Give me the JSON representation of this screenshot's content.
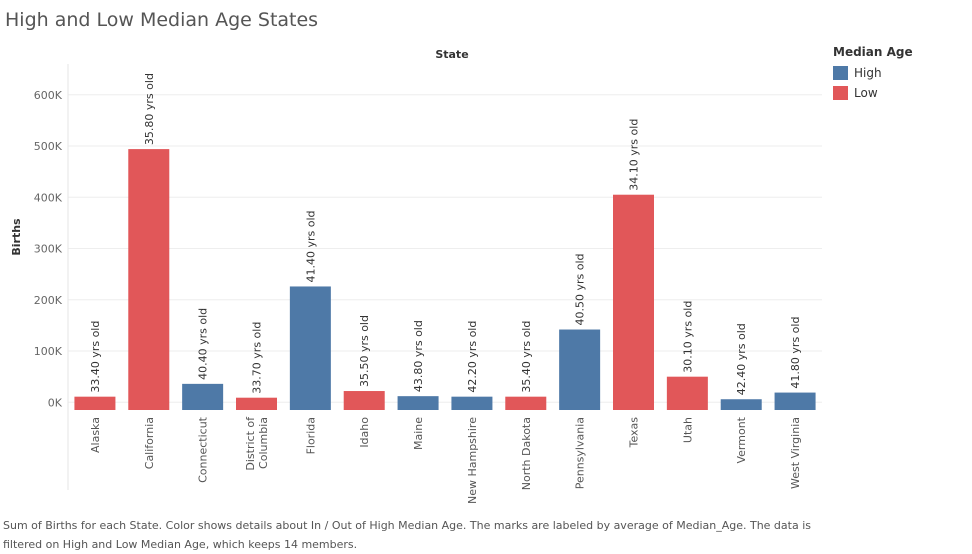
{
  "title": "High and Low Median Age States",
  "caption": "Sum of Births for each State.  Color shows details about In / Out of High Median Age.  The marks are labeled by average of Median_Age. The data is filtered on High and Low Median Age, which keeps 14 members.",
  "legend": {
    "title": "Median Age",
    "items": [
      {
        "label": "High",
        "color": "#4e79a7"
      },
      {
        "label": "Low",
        "color": "#e15759"
      }
    ]
  },
  "chart_data": {
    "type": "bar",
    "xlabel": "State",
    "ylabel": "Births",
    "ylim": [
      -15000,
      660000
    ],
    "yticks": [
      0,
      100000,
      200000,
      300000,
      400000,
      500000,
      600000
    ],
    "ytick_labels": [
      "0K",
      "100K",
      "200K",
      "300K",
      "400K",
      "500K",
      "600K"
    ],
    "grid": true,
    "legend_position": "right",
    "categories": [
      "Alaska",
      "California",
      "Connecticut",
      "District of Columbia",
      "Florida",
      "Idaho",
      "Maine",
      "New Hampshire",
      "North Dakota",
      "Pennsylvania",
      "Texas",
      "Utah",
      "Vermont",
      "West Virginia"
    ],
    "category_lines": [
      [
        "Alaska"
      ],
      [
        "California"
      ],
      [
        "Connecticut"
      ],
      [
        "District of",
        "Columbia"
      ],
      [
        "Florida"
      ],
      [
        "Idaho"
      ],
      [
        "Maine"
      ],
      [
        "New Hampshire"
      ],
      [
        "North Dakota"
      ],
      [
        "Pennsylvania"
      ],
      [
        "Texas"
      ],
      [
        "Utah"
      ],
      [
        "Vermont"
      ],
      [
        "West Virginia"
      ]
    ],
    "values": [
      11000,
      494000,
      36000,
      9000,
      226000,
      22000,
      12000,
      11000,
      11000,
      142000,
      405000,
      50000,
      6000,
      19000
    ],
    "groups": [
      "Low",
      "Low",
      "High",
      "Low",
      "High",
      "Low",
      "High",
      "High",
      "Low",
      "High",
      "Low",
      "Low",
      "High",
      "High"
    ],
    "labels": [
      "33.40 yrs old",
      "35.80 yrs old",
      "40.40 yrs old",
      "33.70 yrs old",
      "41.40 yrs old",
      "35.50 yrs old",
      "43.80 yrs old",
      "42.20 yrs old",
      "35.40 yrs old",
      "40.50 yrs old",
      "34.10 yrs old",
      "30.10 yrs old",
      "42.40 yrs old",
      "41.80 yrs old"
    ]
  }
}
